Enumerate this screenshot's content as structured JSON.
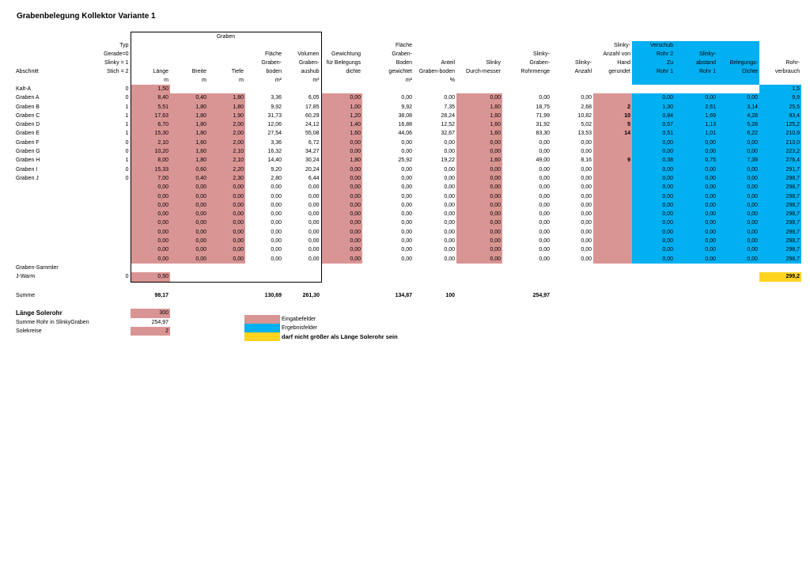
{
  "title": "Grabenbelegung Kollektor Variante 1",
  "header": {
    "graben_group": "Graben",
    "r1": [
      "",
      "Typ",
      "",
      "",
      "",
      "",
      "",
      "",
      "Fläche",
      "",
      "",
      "",
      "",
      "Slinky-",
      "Verschub",
      "",
      "",
      ""
    ],
    "r2": [
      "",
      "Gerade=0",
      "",
      "",
      "",
      "Fläche",
      "Volumen",
      "Gewichtung",
      "Graben-",
      "",
      "",
      "Slinky-",
      "",
      "Anzahl von",
      "Rohr 2",
      "Slinky-",
      "",
      ""
    ],
    "r3": [
      "",
      "Slinky = 1",
      "",
      "",
      "",
      "Graben-",
      "Graben-",
      "für Belegungs",
      "Boden",
      "Anteil",
      "Slinky",
      "Graben-",
      "Slinky-",
      "Hand",
      "Zu",
      "abstand",
      "Belegungs-",
      "Rohr-"
    ],
    "r4": [
      "Abschnitt",
      "Stich = 2",
      "Länge",
      "Breite",
      "Tiefe",
      "boden",
      "aushub",
      "dichte",
      "gewichtet",
      "Graben-boden",
      "Durch-messer",
      "Rohrmenge",
      "Anzahl",
      "gerundet",
      "Rohr 1",
      "Rohr 1",
      "Dichte",
      "verbrauch"
    ],
    "r5": [
      "",
      "",
      "m",
      "m",
      "m",
      "m²",
      "m³",
      "",
      "m²",
      "%",
      "",
      "",
      "",
      "",
      "",
      "",
      "",
      ""
    ]
  },
  "rows": [
    [
      "Kalt-A",
      "0",
      "1,50",
      "",
      "",
      "",
      "",
      "",
      "",
      "",
      "",
      "",
      "",
      "",
      "",
      "",
      "",
      "1,5"
    ],
    [
      "Graben A",
      "0",
      "8,40",
      "0,40",
      "1,80",
      "3,36",
      "6,05",
      "0,00",
      "0,00",
      "0,00",
      "0,00",
      "0,00",
      "0,00",
      "",
      "0,00",
      "0,00",
      "0,00",
      "9,9"
    ],
    [
      "Graben B",
      "1",
      "5,51",
      "1,80",
      "1,80",
      "9,92",
      "17,85",
      "1,00",
      "9,92",
      "7,35",
      "1,60",
      "18,75",
      "2,68",
      "2",
      "1,30",
      "2,61",
      "3,14",
      "25,5"
    ],
    [
      "Graben C",
      "1",
      "17,63",
      "1,80",
      "1,90",
      "31,73",
      "60,29",
      "1,20",
      "38,08",
      "28,24",
      "1,60",
      "71,99",
      "10,82",
      "10",
      "0,84",
      "1,69",
      "4,28",
      "93,4"
    ],
    [
      "Graben D",
      "1",
      "6,70",
      "1,80",
      "2,00",
      "12,06",
      "24,12",
      "1,40",
      "16,88",
      "12,52",
      "1,60",
      "31,92",
      "5,02",
      "5",
      "0,57",
      "1,13",
      "5,28",
      "125,2"
    ],
    [
      "Graben E",
      "1",
      "15,30",
      "1,80",
      "2,00",
      "27,54",
      "55,08",
      "1,60",
      "44,06",
      "32,67",
      "1,60",
      "83,30",
      "13,53",
      "14",
      "0,51",
      "1,01",
      "6,22",
      "210,9"
    ],
    [
      "Graben F",
      "0",
      "2,10",
      "1,60",
      "2,00",
      "3,36",
      "6,72",
      "0,00",
      "0,00",
      "0,00",
      "0,00",
      "0,00",
      "0,00",
      "",
      "0,00",
      "0,00",
      "0,00",
      "213,0"
    ],
    [
      "Graben G",
      "0",
      "10,20",
      "1,60",
      "2,10",
      "16,32",
      "34,27",
      "0,00",
      "0,00",
      "0,00",
      "0,00",
      "0,00",
      "0,00",
      "",
      "0,00",
      "0,00",
      "0,00",
      "223,2"
    ],
    [
      "Graben H",
      "1",
      "8,00",
      "1,80",
      "2,10",
      "14,40",
      "30,24",
      "1,80",
      "25,92",
      "19,22",
      "1,60",
      "49,00",
      "8,16",
      "9",
      "0,38",
      "0,75",
      "7,39",
      "276,4"
    ],
    [
      "Graben I",
      "0",
      "15,33",
      "0,60",
      "2,20",
      "9,20",
      "20,24",
      "0,00",
      "0,00",
      "0,00",
      "0,00",
      "0,00",
      "0,00",
      "",
      "0,00",
      "0,00",
      "0,00",
      "291,7"
    ],
    [
      "Graben J",
      "0",
      "7,00",
      "0,40",
      "2,30",
      "2,80",
      "6,44",
      "0,00",
      "0,00",
      "0,00",
      "0,00",
      "0,00",
      "0,00",
      "",
      "0,00",
      "0,00",
      "0,00",
      "298,7"
    ],
    [
      "",
      "",
      "0,00",
      "0,00",
      "0,00",
      "0,00",
      "0,00",
      "0,00",
      "0,00",
      "0,00",
      "0,00",
      "0,00",
      "0,00",
      "",
      "0,00",
      "0,00",
      "0,00",
      "298,7"
    ],
    [
      "",
      "",
      "0,00",
      "0,00",
      "0,00",
      "0,00",
      "0,00",
      "0,00",
      "0,00",
      "0,00",
      "0,00",
      "0,00",
      "0,00",
      "",
      "0,00",
      "0,00",
      "0,00",
      "298,7"
    ],
    [
      "",
      "",
      "0,00",
      "0,00",
      "0,00",
      "0,00",
      "0,00",
      "0,00",
      "0,00",
      "0,00",
      "0,00",
      "0,00",
      "0,00",
      "",
      "0,00",
      "0,00",
      "0,00",
      "298,7"
    ],
    [
      "",
      "",
      "0,00",
      "0,00",
      "0,00",
      "0,00",
      "0,00",
      "0,00",
      "0,00",
      "0,00",
      "0,00",
      "0,00",
      "0,00",
      "",
      "0,00",
      "0,00",
      "0,00",
      "298,7"
    ],
    [
      "",
      "",
      "0,00",
      "0,00",
      "0,00",
      "0,00",
      "0,00",
      "0,00",
      "0,00",
      "0,00",
      "0,00",
      "0,00",
      "0,00",
      "",
      "0,00",
      "0,00",
      "0,00",
      "298,7"
    ],
    [
      "",
      "",
      "0,00",
      "0,00",
      "0,00",
      "0,00",
      "0,00",
      "0,00",
      "0,00",
      "0,00",
      "0,00",
      "0,00",
      "0,00",
      "",
      "0,00",
      "0,00",
      "0,00",
      "298,7"
    ],
    [
      "",
      "",
      "0,00",
      "0,00",
      "0,00",
      "0,00",
      "0,00",
      "0,00",
      "0,00",
      "0,00",
      "0,00",
      "0,00",
      "0,00",
      "",
      "0,00",
      "0,00",
      "0,00",
      "298,7"
    ],
    [
      "",
      "",
      "0,00",
      "0,00",
      "0,00",
      "0,00",
      "0,00",
      "0,00",
      "0,00",
      "0,00",
      "0,00",
      "0,00",
      "0,00",
      "",
      "0,00",
      "0,00",
      "0,00",
      "298,7"
    ],
    [
      "",
      "",
      "0,00",
      "0,00",
      "0,00",
      "0,00",
      "0,00",
      "0,00",
      "0,00",
      "0,00",
      "0,00",
      "0,00",
      "0,00",
      "",
      "0,00",
      "0,00",
      "0,00",
      "298,7"
    ]
  ],
  "sammler": {
    "label": "Graben-Sammler"
  },
  "jwarm": {
    "label": "J-Warm",
    "typ": "0",
    "laenge": "0,50",
    "verbrauch": "299,2"
  },
  "summe": {
    "label": "Summe",
    "laenge": "98,17",
    "flaeche": "130,69",
    "volumen": "261,30",
    "gewichtet": "134,87",
    "anteil": "100",
    "rohrmenge": "254,97"
  },
  "extra": {
    "solerohr_label": "Länge Solerohr",
    "solerohr_value": "300",
    "summe_rohr_label": "Summe Rohr in SlinkyGraben",
    "summe_rohr_value": "254,97",
    "solekreise_label": "Solekreise",
    "solekreise_value": "2"
  },
  "legend": {
    "eingabe": "Eingabefelder",
    "ergebnis": "Ergebnisfelder",
    "warnung": "darf nicht größer als Länge Solerohr sein"
  },
  "colors": {
    "input": "#d99594",
    "result": "#00b0f0",
    "warning": "#ffd320"
  }
}
